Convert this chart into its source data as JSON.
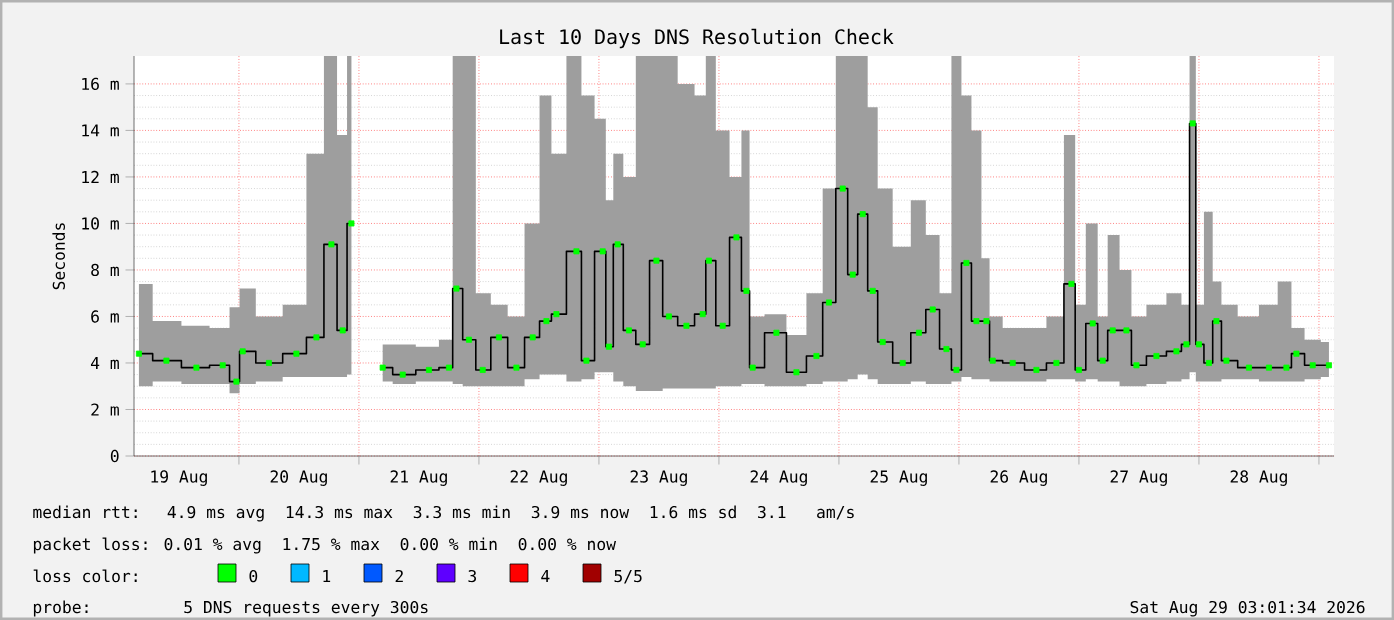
{
  "chart_data": {
    "type": "step",
    "title": "Last 10 Days DNS Resolution Check",
    "ylabel": "Seconds",
    "x": [
      "2026-08-19T04:00",
      "2026-08-19T09:30",
      "2026-08-19T15:30",
      "2026-08-19T20:45",
      "2026-08-19T23:30",
      "2026-08-20T00:45",
      "2026-08-20T06:00",
      "2026-08-20T11:30",
      "2026-08-20T15:30",
      "2026-08-20T18:30",
      "2026-08-20T20:45",
      "2026-08-20T22:30",
      "2026-08-21T02:00",
      "2026-08-21T04:45",
      "2026-08-21T08:45",
      "2026-08-21T14:00",
      "2026-08-21T18:00",
      "2026-08-21T19:30",
      "2026-08-21T22:00",
      "2026-08-22T00:45",
      "2026-08-22T04:00",
      "2026-08-22T07:30",
      "2026-08-22T10:45",
      "2026-08-22T13:30",
      "2026-08-22T15:30",
      "2026-08-22T19:30",
      "2026-08-22T21:30",
      "2026-08-23T00:45",
      "2026-08-23T02:00",
      "2026-08-23T03:45",
      "2026-08-23T06:00",
      "2026-08-23T08:45",
      "2026-08-23T11:30",
      "2026-08-23T14:00",
      "2026-08-23T17:30",
      "2026-08-23T20:45",
      "2026-08-23T22:00",
      "2026-08-24T00:45",
      "2026-08-24T03:30",
      "2026-08-24T05:30",
      "2026-08-24T06:45",
      "2026-08-24T11:30",
      "2026-08-24T15:30",
      "2026-08-24T19:30",
      "2026-08-24T22:00",
      "2026-08-25T00:45",
      "2026-08-25T02:45",
      "2026-08-25T04:45",
      "2026-08-25T06:45",
      "2026-08-25T08:45",
      "2026-08-25T12:45",
      "2026-08-25T16:00",
      "2026-08-25T18:45",
      "2026-08-25T21:30",
      "2026-08-25T23:30",
      "2026-08-26T01:30",
      "2026-08-26T03:30",
      "2026-08-26T05:30",
      "2026-08-26T06:45",
      "2026-08-26T10:45",
      "2026-08-26T15:30",
      "2026-08-26T19:30",
      "2026-08-26T22:30",
      "2026-08-27T00:00",
      "2026-08-27T02:45",
      "2026-08-27T04:45",
      "2026-08-27T06:45",
      "2026-08-27T09:30",
      "2026-08-27T11:30",
      "2026-08-27T15:30",
      "2026-08-27T19:30",
      "2026-08-27T21:30",
      "2026-08-27T22:45",
      "2026-08-28T00:00",
      "2026-08-28T02:00",
      "2026-08-28T03:30",
      "2026-08-28T05:30",
      "2026-08-28T10:00",
      "2026-08-28T14:00",
      "2026-08-28T17:30",
      "2026-08-28T19:30",
      "2026-08-28T22:45",
      "2026-08-29T02:00"
    ],
    "series": [
      {
        "color": "#00ff00",
        "values": [
          4.4,
          4.1,
          3.8,
          3.9,
          3.2,
          4.5,
          4.0,
          4.4,
          5.1,
          9.1,
          5.4,
          10.0,
          null,
          3.8,
          3.5,
          3.7,
          3.8,
          7.2,
          5.0,
          3.7,
          5.1,
          3.8,
          5.1,
          5.8,
          6.1,
          8.8,
          4.1,
          8.8,
          4.7,
          9.1,
          5.4,
          4.8,
          8.4,
          6.0,
          5.6,
          6.1,
          8.4,
          5.6,
          9.4,
          7.1,
          3.8,
          5.3,
          3.6,
          4.3,
          6.6,
          11.5,
          7.8,
          10.4,
          7.1,
          4.9,
          4.0,
          5.3,
          6.3,
          4.6,
          3.7,
          8.3,
          5.8,
          5.8,
          4.1,
          4.0,
          3.7,
          4.0,
          7.4,
          3.7,
          5.7,
          4.1,
          5.4,
          5.4,
          3.9,
          4.3,
          4.5,
          4.8,
          14.3,
          4.8,
          4.0,
          5.8,
          4.1,
          3.8,
          3.8,
          3.8,
          4.4,
          3.9,
          3.9
        ],
        "lower": [
          3.0,
          3.2,
          3.1,
          3.1,
          2.7,
          3.1,
          3.2,
          3.4,
          3.4,
          3.4,
          3.4,
          3.5,
          null,
          3.2,
          3.1,
          3.2,
          3.2,
          3.1,
          3.0,
          3.0,
          3.0,
          3.0,
          3.3,
          3.5,
          3.5,
          3.2,
          3.3,
          3.6,
          3.6,
          3.2,
          3.0,
          2.8,
          2.8,
          2.9,
          2.9,
          2.9,
          2.9,
          3.0,
          3.0,
          3.1,
          3.1,
          3.0,
          3.0,
          3.1,
          3.2,
          3.2,
          3.3,
          3.5,
          3.3,
          3.1,
          3.1,
          3.2,
          3.1,
          3.1,
          3.2,
          3.4,
          3.3,
          3.3,
          3.2,
          3.2,
          3.2,
          3.3,
          3.3,
          3.2,
          3.3,
          3.2,
          3.2,
          3.0,
          3.0,
          3.1,
          3.2,
          3.3,
          3.6,
          3.2,
          3.2,
          3.2,
          3.3,
          3.3,
          3.2,
          3.2,
          3.2,
          3.3,
          3.4
        ],
        "upper": [
          7.4,
          5.8,
          5.6,
          5.5,
          6.4,
          7.2,
          6.0,
          6.5,
          13.0,
          17.2,
          13.8,
          17.2,
          null,
          4.8,
          4.8,
          4.7,
          5.0,
          17.2,
          17.2,
          7.0,
          6.5,
          6.0,
          10.0,
          15.5,
          13.0,
          17.2,
          15.5,
          14.5,
          11.0,
          13.0,
          12.0,
          17.2,
          17.2,
          17.2,
          16.0,
          15.5,
          17.2,
          14.0,
          12.0,
          14.0,
          6.0,
          6.1,
          5.2,
          7.0,
          11.5,
          17.2,
          17.2,
          17.2,
          15.0,
          11.5,
          9.0,
          11.0,
          9.5,
          7.0,
          17.2,
          15.5,
          14.0,
          8.5,
          6.0,
          5.5,
          5.5,
          6.0,
          13.8,
          6.5,
          10.0,
          6.0,
          9.5,
          8.0,
          6.0,
          6.5,
          7.0,
          6.5,
          17.2,
          6.5,
          10.5,
          7.5,
          6.5,
          6.0,
          6.5,
          7.5,
          5.5,
          5.0,
          4.9
        ]
      }
    ],
    "xlim": [
      "2026-08-19T03:01",
      "2026-08-29T03:01"
    ],
    "xticks": [
      {
        "value": "2026-08-19T12:00",
        "label": "19 Aug"
      },
      {
        "value": "2026-08-20T00:00",
        "label": null
      },
      {
        "value": "2026-08-20T12:00",
        "label": "20 Aug"
      },
      {
        "value": "2026-08-21T00:00",
        "label": null
      },
      {
        "value": "2026-08-21T12:00",
        "label": "21 Aug"
      },
      {
        "value": "2026-08-22T00:00",
        "label": null
      },
      {
        "value": "2026-08-22T12:00",
        "label": "22 Aug"
      },
      {
        "value": "2026-08-23T00:00",
        "label": null
      },
      {
        "value": "2026-08-23T12:00",
        "label": "23 Aug"
      },
      {
        "value": "2026-08-24T00:00",
        "label": null
      },
      {
        "value": "2026-08-24T12:00",
        "label": "24 Aug"
      },
      {
        "value": "2026-08-25T00:00",
        "label": null
      },
      {
        "value": "2026-08-25T12:00",
        "label": "25 Aug"
      },
      {
        "value": "2026-08-26T00:00",
        "label": null
      },
      {
        "value": "2026-08-26T12:00",
        "label": "26 Aug"
      },
      {
        "value": "2026-08-27T00:00",
        "label": null
      },
      {
        "value": "2026-08-27T12:00",
        "label": "27 Aug"
      },
      {
        "value": "2026-08-28T00:00",
        "label": null
      },
      {
        "value": "2026-08-28T12:00",
        "label": "28 Aug"
      },
      {
        "value": "2026-08-29T00:00",
        "label": null
      }
    ],
    "ylim": [
      0,
      17.2
    ],
    "yticks": [
      0,
      {
        "value": 2,
        "label": "2 m"
      },
      {
        "value": 4,
        "label": "4 m"
      },
      {
        "value": 6,
        "label": "6 m"
      },
      {
        "value": 8,
        "label": "8 m"
      },
      {
        "value": 10,
        "label": "10 m"
      },
      {
        "value": 12,
        "label": "12 m"
      },
      {
        "value": 14,
        "label": "14 m"
      },
      {
        "value": 16,
        "label": "16 m"
      }
    ],
    "grid": true,
    "marker": "square",
    "annotations": [
      "median rtt:  4.9 ms avg  14.3 ms max  3.3 ms min  3.9 ms now  1.6 ms sd  3.1   am/s",
      "packet loss: 0.01 % avg  1.75 % max  0.00 % min  0.00 % now",
      "loss color:",
      "0",
      "1",
      "2",
      "3",
      "4",
      "5/5",
      "probe:       5 DNS requests every 300s",
      "Sat Aug 29 03:01:34 2026"
    ]
  }
}
